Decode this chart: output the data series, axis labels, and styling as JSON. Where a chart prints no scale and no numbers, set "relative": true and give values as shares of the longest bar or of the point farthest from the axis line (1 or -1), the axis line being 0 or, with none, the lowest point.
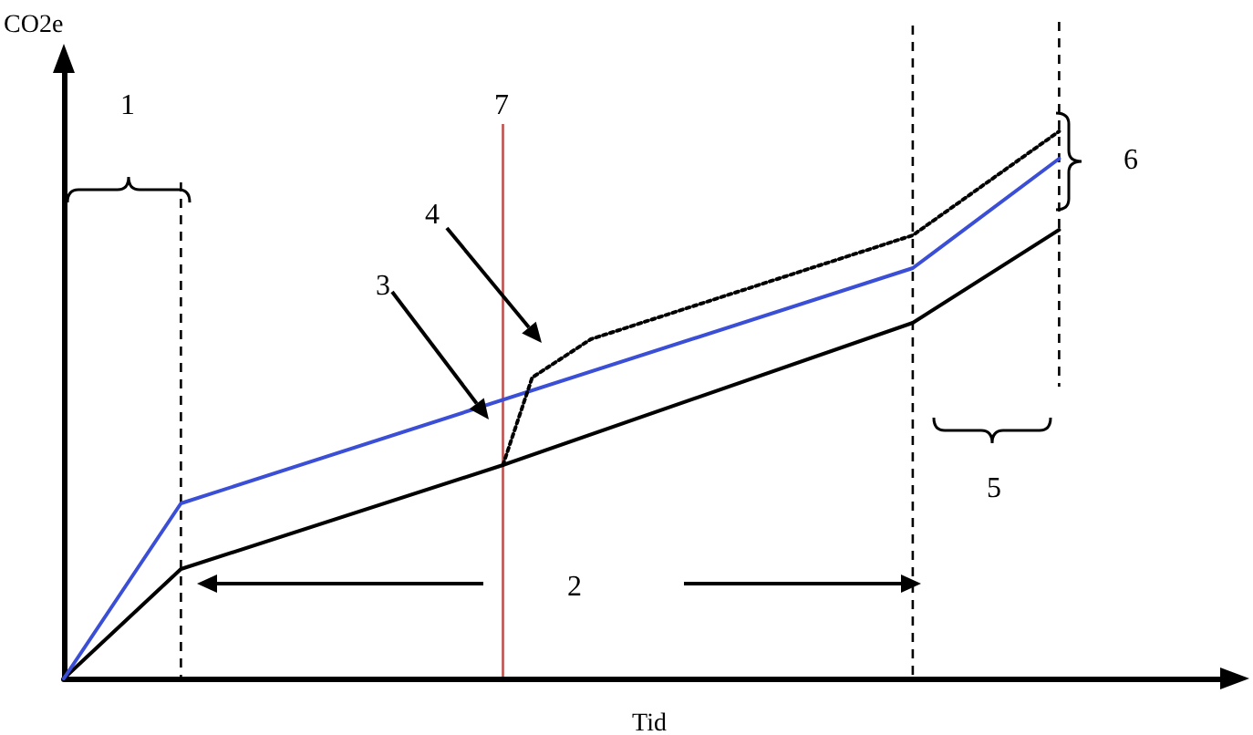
{
  "chart_data": {
    "type": "line",
    "relative": true,
    "xlabel": "Tid",
    "ylabel": "CO2e",
    "tick_labels": false,
    "grid": false,
    "marker": "none",
    "categories": [
      null,
      null,
      null,
      null,
      null,
      null,
      null,
      null,
      null,
      null,
      null,
      null,
      null,
      null,
      null,
      null,
      null,
      null,
      null,
      null,
      null,
      null,
      null,
      null,
      null,
      null,
      null,
      null,
      null,
      null,
      null,
      null,
      null,
      null,
      null,
      null,
      null,
      null,
      null,
      null,
      null
    ],
    "series": [
      {
        "color": "#000000",
        "line_style": "solid",
        "values": [
          0,
          null,
          null,
          null,
          0.2,
          null,
          null,
          null,
          null,
          null,
          null,
          null,
          null,
          null,
          null,
          0.39,
          null,
          null,
          null,
          null,
          null,
          null,
          null,
          null,
          null,
          null,
          null,
          null,
          null,
          0.65,
          null,
          null,
          null,
          null,
          0.82,
          null,
          null,
          null,
          null,
          null,
          null
        ]
      },
      {
        "color": "#3b4fd6",
        "line_style": "solid",
        "values": [
          0,
          null,
          null,
          null,
          0.32,
          null,
          null,
          null,
          null,
          null,
          null,
          null,
          null,
          null,
          null,
          null,
          null,
          null,
          null,
          null,
          null,
          null,
          null,
          null,
          null,
          null,
          null,
          null,
          null,
          0.75,
          null,
          null,
          null,
          null,
          0.95,
          null,
          null,
          null,
          null,
          null,
          null
        ]
      },
      {
        "color": "#000000",
        "line_style": "dotted",
        "values": [
          null,
          null,
          null,
          null,
          null,
          null,
          null,
          null,
          null,
          null,
          null,
          null,
          null,
          null,
          null,
          0.39,
          0.55,
          null,
          0.62,
          null,
          null,
          null,
          null,
          null,
          null,
          null,
          null,
          null,
          null,
          0.81,
          null,
          null,
          null,
          null,
          1.0,
          null,
          null,
          null,
          null,
          null,
          null
        ]
      }
    ],
    "annotations": [
      "1",
      "2",
      "3",
      "4",
      "5",
      "6",
      "7"
    ]
  }
}
